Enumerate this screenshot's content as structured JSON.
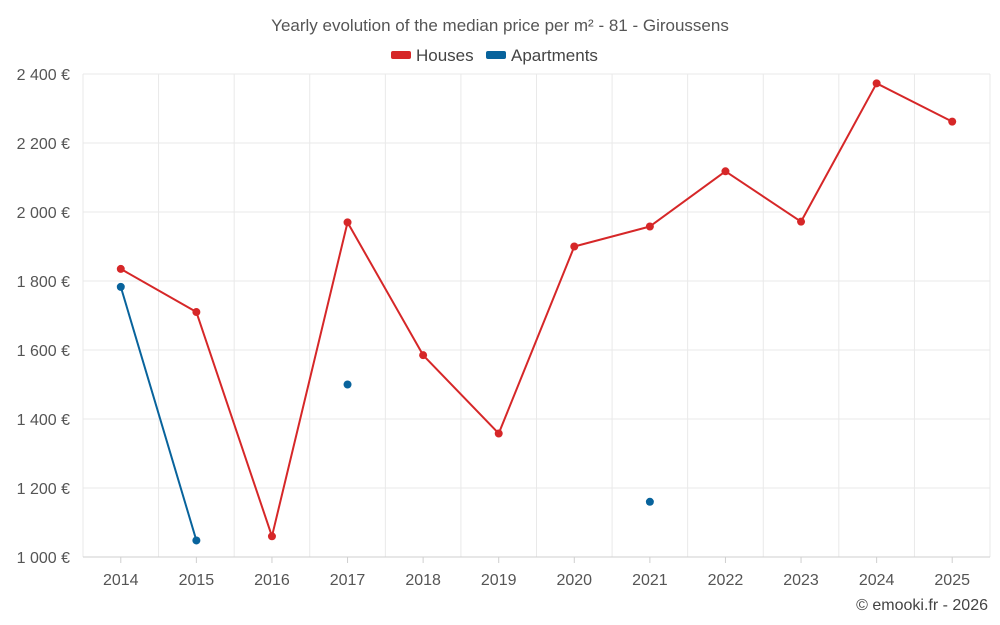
{
  "chart_data": {
    "type": "line",
    "title": "Yearly evolution of the median price per m² - 81 - Giroussens",
    "categories": [
      "2014",
      "2015",
      "2016",
      "2017",
      "2018",
      "2019",
      "2020",
      "2021",
      "2022",
      "2023",
      "2024",
      "2025"
    ],
    "ylim": [
      1000,
      2400
    ],
    "yticks": [
      1000,
      1200,
      1400,
      1600,
      1800,
      2000,
      2200,
      2400
    ],
    "ytick_labels": [
      "1 000 €",
      "1 200 €",
      "1 400 €",
      "1 600 €",
      "1 800 €",
      "2 000 €",
      "2 200 €",
      "2 400 €"
    ],
    "grid": true,
    "legend_position": "top-center",
    "series": [
      {
        "name": "Houses",
        "color": "#d62728",
        "values": [
          1835,
          1710,
          1060,
          1970,
          1585,
          1358,
          1900,
          1958,
          2118,
          1972,
          2373,
          2262
        ]
      },
      {
        "name": "Apartments",
        "color": "#08639c",
        "values": [
          1783,
          1048,
          null,
          1500,
          null,
          null,
          null,
          1160,
          null,
          null,
          null,
          null
        ]
      }
    ],
    "credit": "© emooki.fr - 2026"
  }
}
